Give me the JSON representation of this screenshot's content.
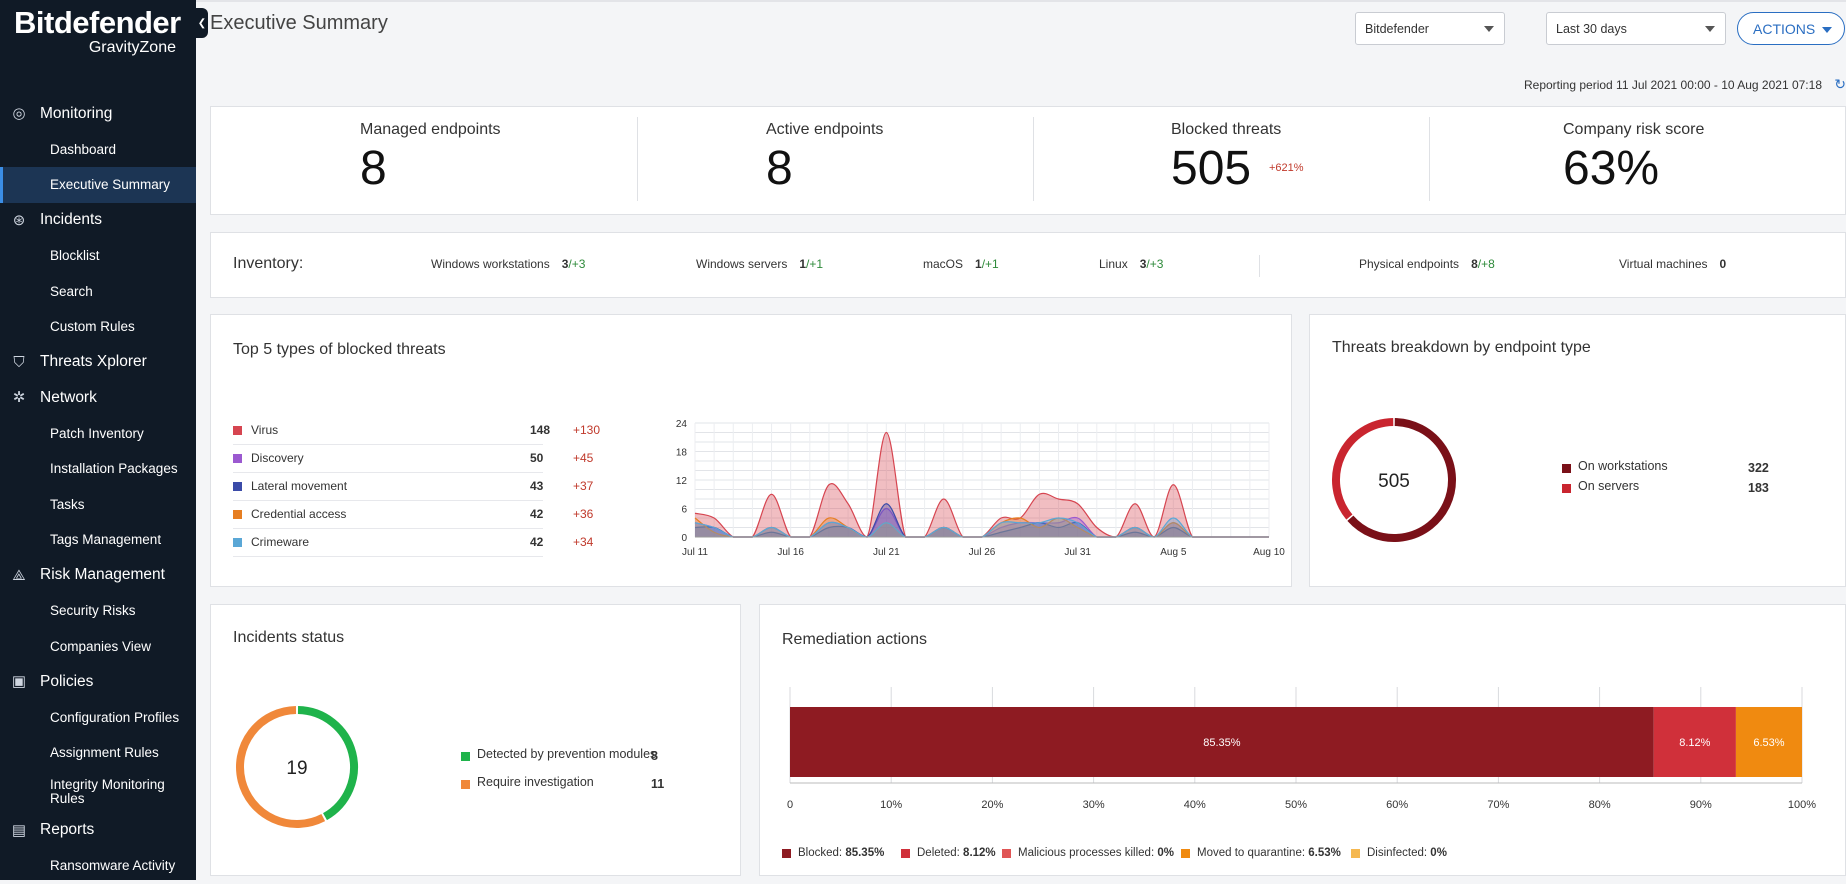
{
  "app": {
    "logo_name": "Bitdefender",
    "logo_sub": "GravityZone",
    "page_title": "Executive Summary"
  },
  "sidebar": {
    "items": [
      {
        "label": "Monitoring",
        "kind": "group",
        "icon": "monitoring-icon"
      },
      {
        "label": "Dashboard",
        "kind": "sub"
      },
      {
        "label": "Executive Summary",
        "kind": "sub",
        "active": true
      },
      {
        "label": "Incidents",
        "kind": "group",
        "icon": "incidents-icon"
      },
      {
        "label": "Blocklist",
        "kind": "sub"
      },
      {
        "label": "Search",
        "kind": "sub"
      },
      {
        "label": "Custom Rules",
        "kind": "sub"
      },
      {
        "label": "Threats Xplorer",
        "kind": "group",
        "icon": "shield-icon"
      },
      {
        "label": "Network",
        "kind": "group",
        "icon": "network-icon"
      },
      {
        "label": "Patch Inventory",
        "kind": "sub"
      },
      {
        "label": "Installation Packages",
        "kind": "sub"
      },
      {
        "label": "Tasks",
        "kind": "sub"
      },
      {
        "label": "Tags Management",
        "kind": "sub"
      },
      {
        "label": "Risk Management",
        "kind": "group",
        "icon": "risk-icon"
      },
      {
        "label": "Security Risks",
        "kind": "sub"
      },
      {
        "label": "Companies View",
        "kind": "sub"
      },
      {
        "label": "Policies",
        "kind": "group",
        "icon": "policies-icon"
      },
      {
        "label": "Configuration Profiles",
        "kind": "sub"
      },
      {
        "label": "Assignment Rules",
        "kind": "sub"
      },
      {
        "label": "Integrity Monitoring Rules",
        "kind": "sub",
        "two_line": true
      },
      {
        "label": "Reports",
        "kind": "group",
        "icon": "reports-icon"
      },
      {
        "label": "Ransomware Activity",
        "kind": "sub"
      }
    ]
  },
  "header": {
    "company_select": "Bitdefender",
    "period_select": "Last 30 days",
    "actions_label": "ACTIONS",
    "reporting_period": "Reporting period 11 Jul 2021 00:00 - 10 Aug 2021 07:18"
  },
  "kpis": [
    {
      "label": "Managed endpoints",
      "value": "8",
      "delta": ""
    },
    {
      "label": "Active endpoints",
      "value": "8",
      "delta": ""
    },
    {
      "label": "Blocked threats",
      "value": "505",
      "delta": "+621%"
    },
    {
      "label": "Company risk score",
      "value": "63%",
      "delta": ""
    }
  ],
  "inventory": {
    "title": "Inventory:",
    "items": [
      {
        "label": "Windows workstations",
        "value": "3",
        "delta": "/+3"
      },
      {
        "label": "Windows servers",
        "value": "1",
        "delta": "/+1"
      },
      {
        "label": "macOS",
        "value": "1",
        "delta": "/+1"
      },
      {
        "label": "Linux",
        "value": "3",
        "delta": "/+3"
      },
      {
        "label": "Physical endpoints",
        "value": "8",
        "delta": "/+8"
      },
      {
        "label": "Virtual machines",
        "value": "0",
        "delta": ""
      }
    ]
  },
  "top_threats": {
    "title": "Top 5 types of blocked threats",
    "rows": [
      {
        "label": "Virus",
        "value": "148",
        "delta": "+130",
        "color": "#d64550"
      },
      {
        "label": "Discovery",
        "value": "50",
        "delta": "+45",
        "color": "#9b59d0"
      },
      {
        "label": "Lateral movement",
        "value": "43",
        "delta": "+37",
        "color": "#3b4ba8"
      },
      {
        "label": "Credential access",
        "value": "42",
        "delta": "+36",
        "color": "#e67e22"
      },
      {
        "label": "Crimeware",
        "value": "42",
        "delta": "+34",
        "color": "#5aa7d6"
      }
    ]
  },
  "breakdown": {
    "title": "Threats breakdown by endpoint type",
    "total": "505",
    "rows": [
      {
        "label": "On workstations",
        "value": "322",
        "color": "#7a1018"
      },
      {
        "label": "On servers",
        "value": "183",
        "color": "#c9252f"
      }
    ]
  },
  "incidents": {
    "title": "Incidents status",
    "total": "19",
    "rows": [
      {
        "label": "Detected by prevention modules",
        "value": "8",
        "color": "#1fb34b"
      },
      {
        "label": "Require investigation",
        "value": "11",
        "color": "#f0883a"
      }
    ]
  },
  "remediation": {
    "title": "Remediation actions",
    "legend": [
      {
        "label": "Blocked:",
        "value": "85.35%",
        "color": "#8e1b22"
      },
      {
        "label": "Deleted:",
        "value": "8.12%",
        "color": "#d0303a"
      },
      {
        "label": "Malicious processes killed:",
        "value": "0%",
        "color": "#e05555"
      },
      {
        "label": "Moved to quarantine:",
        "value": "6.53%",
        "color": "#f08a10"
      },
      {
        "label": "Disinfected:",
        "value": "0%",
        "color": "#f5b850"
      }
    ]
  },
  "chart_data": [
    {
      "type": "area",
      "x": [
        "Jul 11",
        "Jul 12",
        "Jul 13",
        "Jul 14",
        "Jul 15",
        "Jul 16",
        "Jul 17",
        "Jul 18",
        "Jul 19",
        "Jul 20",
        "Jul 21",
        "Jul 22",
        "Jul 23",
        "Jul 24",
        "Jul 25",
        "Jul 26",
        "Jul 27",
        "Jul 28",
        "Jul 29",
        "Jul 30",
        "Jul 31",
        "Aug 1",
        "Aug 2",
        "Aug 3",
        "Aug 4",
        "Aug 5",
        "Aug 6",
        "Aug 7",
        "Aug 8",
        "Aug 9",
        "Aug 10"
      ],
      "x_ticks": [
        "Jul 11",
        "Jul 16",
        "Jul 21",
        "Jul 26",
        "Jul 31",
        "Aug 5",
        "Aug 10"
      ],
      "ylim": [
        0,
        24
      ],
      "y_ticks": [
        0,
        6,
        12,
        18,
        24
      ],
      "series": [
        {
          "name": "Virus",
          "color": "#d64550",
          "values": [
            5,
            4,
            0,
            0,
            9,
            0,
            0,
            11,
            7,
            0,
            22,
            0,
            0,
            8,
            0,
            0,
            4,
            4,
            9,
            8,
            7,
            2,
            0,
            7,
            0,
            11,
            0,
            0,
            0,
            0,
            0
          ]
        },
        {
          "name": "Discovery",
          "color": "#9b59d0",
          "values": [
            3,
            2,
            0,
            0,
            2,
            0,
            0,
            3,
            2,
            0,
            6,
            0,
            0,
            2,
            0,
            0,
            2,
            3,
            3,
            3,
            4,
            0,
            0,
            2,
            0,
            3,
            0,
            0,
            0,
            0,
            0
          ]
        },
        {
          "name": "Lateral movement",
          "color": "#3b4ba8",
          "values": [
            2,
            2,
            0,
            0,
            1,
            0,
            0,
            2,
            2,
            0,
            7,
            0,
            0,
            2,
            0,
            0,
            1,
            2,
            3,
            2,
            3,
            0,
            0,
            1,
            0,
            2,
            0,
            0,
            0,
            0,
            0
          ]
        },
        {
          "name": "Credential access",
          "color": "#e67e22",
          "values": [
            4,
            1,
            0,
            0,
            2,
            0,
            0,
            4,
            2,
            0,
            3,
            0,
            0,
            2,
            0,
            0,
            3,
            4,
            2,
            4,
            2,
            0,
            0,
            2,
            0,
            3,
            0,
            0,
            0,
            0,
            0
          ]
        },
        {
          "name": "Crimeware",
          "color": "#5aa7d6",
          "values": [
            3,
            2,
            0,
            0,
            2,
            0,
            0,
            3,
            2,
            0,
            3,
            0,
            0,
            2,
            0,
            0,
            3,
            3,
            3,
            4,
            3,
            0,
            0,
            2,
            0,
            4,
            0,
            0,
            0,
            0,
            0
          ]
        }
      ]
    },
    {
      "type": "pie",
      "title": "Threats breakdown by endpoint type",
      "categories": [
        "On workstations",
        "On servers"
      ],
      "values": [
        322,
        183
      ],
      "colors": [
        "#7a1018",
        "#c9252f"
      ]
    },
    {
      "type": "pie",
      "title": "Incidents status",
      "categories": [
        "Detected by prevention modules",
        "Require investigation"
      ],
      "values": [
        8,
        11
      ],
      "colors": [
        "#1fb34b",
        "#f0883a"
      ]
    },
    {
      "type": "bar",
      "title": "Remediation actions",
      "categories": [
        "Blocked",
        "Deleted",
        "Malicious processes killed",
        "Moved to quarantine",
        "Disinfected"
      ],
      "values": [
        85.35,
        8.12,
        0,
        6.53,
        0
      ],
      "labels": [
        "85.35%",
        "8.12%",
        "",
        "6.53%",
        ""
      ],
      "colors": [
        "#8e1b22",
        "#d0303a",
        "#e05555",
        "#f08a10",
        "#f5b850"
      ],
      "xlim": [
        0,
        100
      ],
      "x_ticks": [
        "0",
        "10%",
        "20%",
        "30%",
        "40%",
        "50%",
        "60%",
        "70%",
        "80%",
        "90%",
        "100%"
      ]
    }
  ]
}
